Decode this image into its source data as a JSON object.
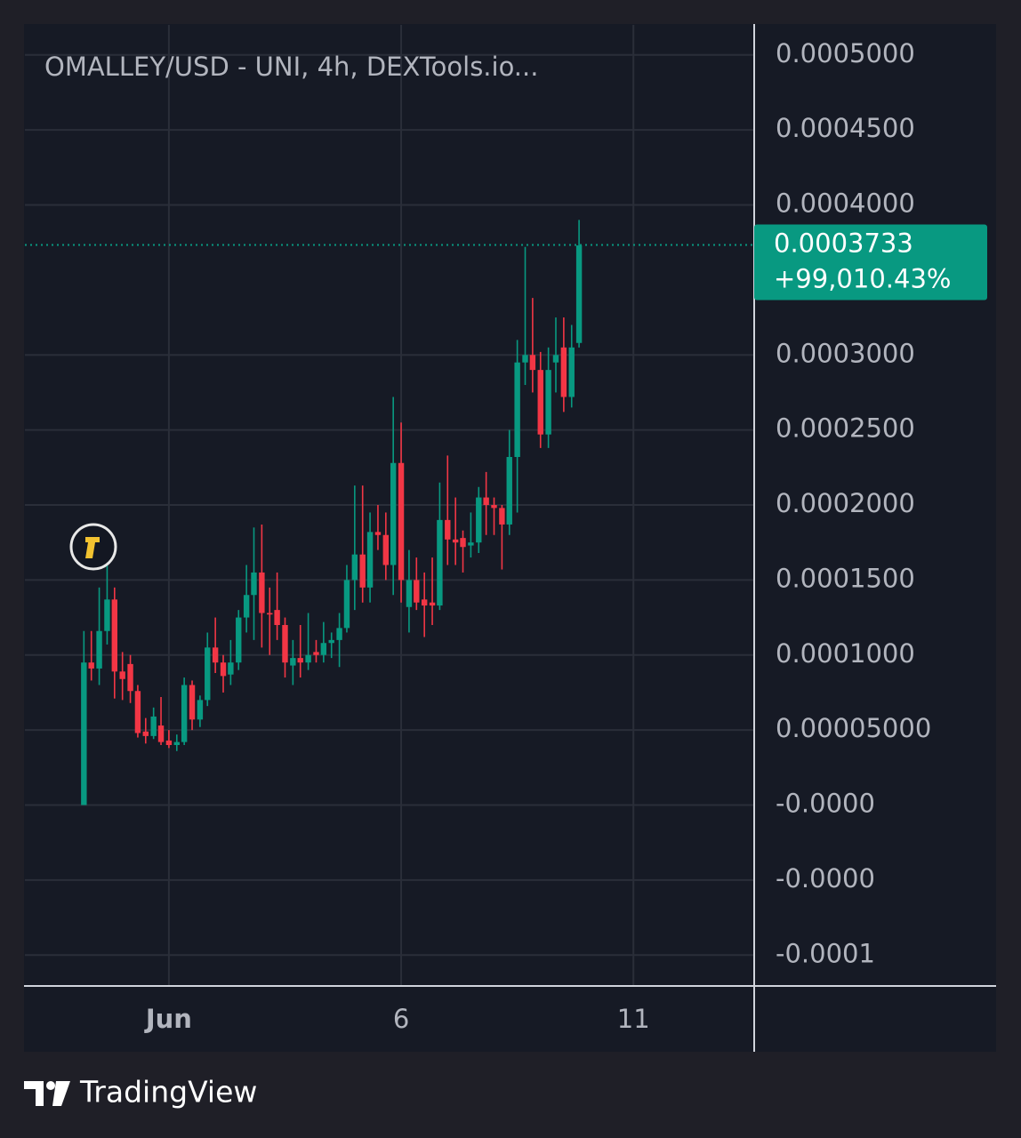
{
  "chart_data": {
    "type": "candlestick",
    "title": "OMALLEY/USD - UNI, 4h, DEXTools.io...",
    "source": "TradingView",
    "up_color": "#089981",
    "down_color": "#f23645",
    "grid": true,
    "x": [
      -0.83,
      -0.67,
      -0.5,
      -0.33,
      -0.17,
      0,
      0.17,
      0.33,
      0.5,
      0.67,
      0.83,
      1,
      1.17,
      1.33,
      1.5,
      1.67,
      1.83,
      2,
      2.17,
      2.33,
      2.5,
      2.67,
      2.83,
      3,
      3.17,
      3.33,
      3.5,
      3.67,
      3.83,
      4,
      4.17,
      4.33,
      4.5,
      4.67,
      4.83,
      5,
      5.17,
      5.33,
      5.5,
      5.67,
      5.83,
      6,
      6.17,
      6.33,
      6.5,
      6.67,
      6.83,
      7,
      7.17,
      7.33,
      7.5,
      7.67,
      7.83,
      8,
      8.17,
      8.33,
      8.5,
      8.67,
      8.83,
      9,
      9.17,
      9.33,
      9.5,
      9.67,
      9.83
    ],
    "open": [
      0,
      9.5e-05,
      9.1e-05,
      0.000116,
      0.000137,
      8.9e-05,
      9.4e-05,
      7.6e-05,
      4.9e-05,
      4.6e-05,
      5.3e-05,
      4.3e-05,
      4e-05,
      4.2e-05,
      8e-05,
      5.7e-05,
      7e-05,
      0.000105,
      9.5e-05,
      8.7e-05,
      9.5e-05,
      0.000125,
      0.00014,
      0.000155,
      0.000128,
      0.00013,
      0.00012,
      9.3e-05,
      9.8e-05,
      9.5e-05,
      0.000102,
      0.0001,
      0.000108,
      0.00011,
      0.000118,
      0.00015,
      0.000167,
      0.000145,
      0.000182,
      0.00018,
      0.00016,
      0.000228,
      0.000132,
      0.00015,
      0.000137,
      0.000135,
      0.000133,
      0.00019,
      0.000177,
      0.000178,
      0.000173,
      0.000175,
      0.000205,
      0.0002,
      0.000198,
      0.000187,
      0.000232,
      0.000295,
      0.0003,
      0.00029,
      0.000247,
      0.000295,
      0.000305,
      0.000272,
      0.000308
    ],
    "high": [
      0.000116,
      0.000116,
      0.000145,
      0.00016,
      0.000145,
      0.000102,
      0.0001,
      8e-05,
      5.8e-05,
      6.5e-05,
      7.2e-05,
      5e-05,
      4.7e-05,
      8.5e-05,
      8.3e-05,
      7.3e-05,
      0.000115,
      0.000125,
      0.0001,
      0.00011,
      0.00013,
      0.00016,
      0.000185,
      0.000187,
      0.000145,
      0.000155,
      0.000125,
      0.00011,
      0.00012,
      0.000128,
      0.00011,
      0.000122,
      0.000115,
      0.000128,
      0.00016,
      0.000213,
      0.000213,
      0.000195,
      0.0002,
      0.000195,
      0.000272,
      0.000255,
      0.00017,
      0.000165,
      0.000155,
      0.000165,
      0.000215,
      0.000233,
      0.000205,
      0.000183,
      0.000195,
      0.000212,
      0.000222,
      0.000205,
      0.0002,
      0.00025,
      0.00031,
      0.000372,
      0.000338,
      0.000302,
      0.000305,
      0.000325,
      0.000325,
      0.00032,
      0.00039
    ],
    "low": [
      0,
      8.3e-05,
      8e-05,
      0.000107,
      7.1e-05,
      7e-05,
      6.8e-05,
      4.5e-05,
      4.1e-05,
      4.4e-05,
      4e-05,
      3.8e-05,
      3.6e-05,
      4e-05,
      5e-05,
      5.2e-05,
      6.6e-05,
      8.8e-05,
      7.5e-05,
      8e-05,
      9e-05,
      0.000115,
      0.00011,
      0.000105,
      0.0001,
      0.00011,
      8.5e-05,
      8e-05,
      8.5e-05,
      9e-05,
      9.5e-05,
      9.5e-05,
      9.8e-05,
      9.2e-05,
      0.000115,
      0.00013,
      0.000135,
      0.000135,
      0.00017,
      0.00015,
      0.00014,
      0.000135,
      0.000115,
      0.00013,
      0.000112,
      0.00012,
      0.00013,
      0.00016,
      0.00016,
      0.000155,
      0.000165,
      0.000168,
      0.00018,
      0.00018,
      0.000157,
      0.00018,
      0.000195,
      0.00028,
      0.000275,
      0.000238,
      0.000238,
      0.000275,
      0.000262,
      0.000265,
      0.000305
    ],
    "close": [
      9.5e-05,
      9.1e-05,
      0.000116,
      0.000137,
      8.9e-05,
      8.4e-05,
      7.6e-05,
      4.8e-05,
      4.6e-05,
      5.9e-05,
      4.2e-05,
      4e-05,
      4.2e-05,
      8e-05,
      5.7e-05,
      7e-05,
      0.000105,
      9.5e-05,
      8.6e-05,
      9.5e-05,
      0.000125,
      0.00014,
      0.000155,
      0.000128,
      0.000127,
      0.00012,
      9.5e-05,
      9.8e-05,
      9.5e-05,
      0.0001,
      0.0001,
      0.000108,
      0.00011,
      0.000118,
      0.00015,
      0.000167,
      0.000145,
      0.000182,
      0.00018,
      0.00016,
      0.000228,
      0.00015,
      0.00015,
      0.000135,
      0.000133,
      0.000133,
      0.00019,
      0.000177,
      0.000175,
      0.000172,
      0.000175,
      0.000205,
      0.0002,
      0.000198,
      0.000187,
      0.000232,
      0.000295,
      0.0003,
      0.00029,
      0.000247,
      0.00029,
      0.0003,
      0.000272,
      0.000305,
      0.000373
    ],
    "last_price": 0.0003733,
    "last_change": "+99,010.43%",
    "xlim": [
      -2.1,
      13.6
    ],
    "ylim": [
      -0.00012,
      0.00052
    ],
    "xticks": [
      {
        "value": 1,
        "label": "Jun"
      },
      6,
      11
    ],
    "yticks": [
      {
        "value": 0.0005,
        "label": "0.0005000"
      },
      {
        "value": 0.00045,
        "label": "0.0004500"
      },
      {
        "value": 0.0004,
        "label": "0.0004000"
      },
      {
        "value": 0.0003,
        "label": "0.0003000"
      },
      {
        "value": 0.00025,
        "label": "0.0002500"
      },
      {
        "value": 0.0002,
        "label": "0.0002000"
      },
      {
        "value": 0.00015,
        "label": "0.0001500"
      },
      {
        "value": 0.0001,
        "label": "0.0001000"
      },
      {
        "value": 5e-05,
        "label": "0.00005000"
      },
      {
        "value": 0,
        "label": "-0.0000"
      },
      {
        "value": -5e-05,
        "label": "-0.0000"
      },
      {
        "value": -0.0001,
        "label": "-0.0001"
      }
    ]
  }
}
